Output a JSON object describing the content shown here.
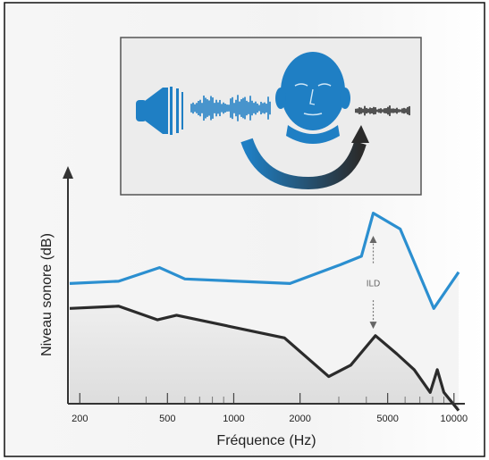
{
  "chart_data": {
    "type": "line",
    "xlabel": "Fréquence (Hz)",
    "ylabel": "Niveau sonore (dB)",
    "x_scale": "log",
    "xlim": [
      180,
      11000
    ],
    "x_tick_labels": [
      "200",
      "500",
      "1000",
      "2000",
      "5000",
      "10000"
    ],
    "x_ticks": [
      200,
      500,
      1000,
      2000,
      5000,
      10000
    ],
    "minor_ticks": [
      300,
      400,
      600,
      700,
      800,
      900,
      3000,
      4000,
      6000,
      7000,
      8000,
      9000
    ],
    "ylim": [
      0,
      100
    ],
    "grid": false,
    "annotation": "ILD",
    "annotation_x": 4300,
    "series": [
      {
        "color": "#2b8fd0",
        "x": [
          180,
          300,
          460,
          600,
          1800,
          3000,
          3800,
          4300,
          5700,
          8100,
          10500
        ],
        "y": [
          53,
          54,
          60,
          55,
          53,
          61,
          65,
          84,
          77,
          42,
          58
        ]
      },
      {
        "color": "#2b2b2b",
        "x": [
          180,
          300,
          450,
          550,
          1700,
          2700,
          3400,
          4400,
          5500,
          6600,
          7800,
          8400,
          9000,
          10500
        ],
        "y": [
          42,
          43,
          37,
          39,
          29,
          12,
          17,
          30,
          22,
          15,
          5,
          15,
          5,
          -3
        ]
      }
    ],
    "colors": {
      "axis": "#333333",
      "fill": "#f1f1f1",
      "frame": "#111111"
    }
  },
  "illustration": {
    "speaker_icon": "speaker-icon",
    "head_icon": "head-icon",
    "arrow_icon": "curved-arrow-icon",
    "colors": {
      "blue": "#1f7fc4",
      "dark": "#2b2b2b",
      "panel": "#ededed"
    }
  }
}
